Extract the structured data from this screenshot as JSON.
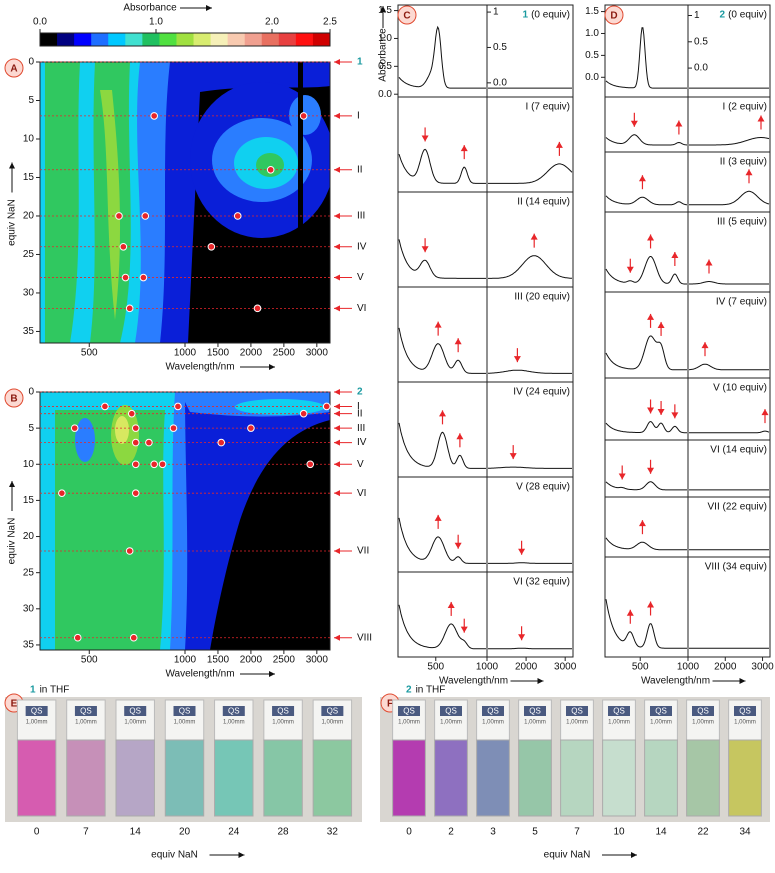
{
  "colorbar": {
    "title": "Absorbance",
    "lim": [
      0,
      2.5
    ],
    "ticks": [
      {
        "value": 0,
        "label": "0.0"
      },
      {
        "value": 1,
        "label": "1.0"
      },
      {
        "value": 2,
        "label": "2.0"
      },
      {
        "value": 2.5,
        "label": "2.5"
      }
    ]
  },
  "panel_a": {
    "letter": "A",
    "ylabel": "equiv NaN",
    "xlabel": "Wavelength/nm",
    "ylim": [
      0,
      36.5
    ],
    "yticks": [
      0,
      5,
      10,
      15,
      20,
      25,
      30,
      35
    ],
    "xlim": [
      350,
      3200
    ],
    "xbreak": 1000,
    "xticks": [
      500,
      1000,
      1500,
      2000,
      2500,
      3000
    ],
    "rows": [
      {
        "label": "1",
        "equiv": 0
      },
      {
        "label": "I",
        "equiv": 7
      },
      {
        "label": "II",
        "equiv": 14
      },
      {
        "label": "III",
        "equiv": 20
      },
      {
        "label": "IV",
        "equiv": 24
      },
      {
        "label": "V",
        "equiv": 28
      },
      {
        "label": "VI",
        "equiv": 32
      }
    ],
    "dots": [
      [
        800,
        7
      ],
      [
        2800,
        7
      ],
      [
        2300,
        14
      ],
      [
        620,
        20
      ],
      [
        750,
        20
      ],
      [
        1800,
        20
      ],
      [
        640,
        24
      ],
      [
        1400,
        24
      ],
      [
        650,
        28
      ],
      [
        740,
        28
      ],
      [
        670,
        32
      ],
      [
        2100,
        32
      ]
    ]
  },
  "panel_b": {
    "letter": "B",
    "ylabel": "equiv NaN",
    "xlabel": "Wavelength/nm",
    "ylim": [
      0,
      35.7
    ],
    "yticks": [
      0,
      5,
      10,
      15,
      20,
      25,
      30,
      35
    ],
    "xlim": [
      350,
      3200
    ],
    "xbreak": 1000,
    "xticks": [
      500,
      1000,
      1500,
      2000,
      2500,
      3000
    ],
    "rows": [
      {
        "label": "2",
        "equiv": 0
      },
      {
        "label": "I",
        "equiv": 2
      },
      {
        "label": "II",
        "equiv": 3
      },
      {
        "label": "III",
        "equiv": 5
      },
      {
        "label": "IV",
        "equiv": 7
      },
      {
        "label": "V",
        "equiv": 10
      },
      {
        "label": "VI",
        "equiv": 14
      },
      {
        "label": "VII",
        "equiv": 22
      },
      {
        "label": "VIII",
        "equiv": 34
      }
    ],
    "dots": [
      [
        560,
        2
      ],
      [
        950,
        2
      ],
      [
        3150,
        2
      ],
      [
        680,
        3
      ],
      [
        2800,
        3
      ],
      [
        450,
        5
      ],
      [
        700,
        5
      ],
      [
        920,
        5
      ],
      [
        2000,
        5
      ],
      [
        700,
        7
      ],
      [
        770,
        7
      ],
      [
        1550,
        7
      ],
      [
        700,
        10
      ],
      [
        800,
        10
      ],
      [
        850,
        10
      ],
      [
        2900,
        10
      ],
      [
        410,
        14
      ],
      [
        700,
        14
      ],
      [
        670,
        22
      ],
      [
        460,
        34
      ],
      [
        690,
        34
      ]
    ]
  },
  "panel_c": {
    "letter": "C",
    "ylabel": "Absorbance",
    "xlabel": "Wavelength/nm",
    "compound": "1",
    "first_label": "(0 equiv)",
    "ylim": [
      -0.05,
      1.6
    ],
    "yticks": [
      {
        "value": 0,
        "label": "0.0"
      },
      {
        "value": 0.5,
        "label": "0.5"
      },
      {
        "value": 1,
        "label": "1.0"
      },
      {
        "value": 1.5,
        "label": "1.5"
      }
    ],
    "inset_ylim": [
      -0.2,
      1.1
    ],
    "inset_yticks": [
      {
        "value": 0,
        "label": "0.0"
      },
      {
        "value": 0.5,
        "label": "0.5"
      },
      {
        "value": 1,
        "label": "1"
      }
    ],
    "xlim": [
      300,
      3200
    ],
    "xbreak": 1000,
    "xticks": [
      500,
      1000,
      2000,
      3000
    ],
    "rows": [
      "I (7 equiv)",
      "II (14 equiv)",
      "III (20 equiv)",
      "IV (24 equiv)",
      "V (28 equiv)",
      "VI (32 equiv)"
    ]
  },
  "panel_d": {
    "letter": "D",
    "xlabel": "Wavelength/nm",
    "compound": "2",
    "first_label": "(0 equiv)",
    "ylim": [
      -0.45,
      1.65
    ],
    "yticks": [
      {
        "value": 0,
        "label": "0.0"
      },
      {
        "value": 0.5,
        "label": "0.5"
      },
      {
        "value": 1,
        "label": "1.0"
      },
      {
        "value": 1.5,
        "label": "1.5"
      }
    ],
    "inset_ylim": [
      -0.55,
      1.2
    ],
    "inset_yticks": [
      {
        "value": 0,
        "label": "0.0"
      },
      {
        "value": 0.5,
        "label": "0.5"
      },
      {
        "value": 1,
        "label": "1"
      }
    ],
    "xlim": [
      300,
      3200
    ],
    "xbreak": 1000,
    "xticks": [
      500,
      1000,
      2000,
      3000
    ],
    "rows": [
      "I (2 equiv)",
      "II (3 equiv)",
      "III (5 equiv)",
      "IV (7 equiv)",
      "V (10 equiv)",
      "VI (14 equiv)",
      "VII (22 equiv)",
      "VIII (34 equiv)"
    ]
  },
  "panel_e": {
    "letter": "E",
    "compound": "1",
    "caption": "in THF",
    "xlabel": "equiv NaN",
    "labels": [
      "0",
      "7",
      "14",
      "20",
      "24",
      "28",
      "32"
    ]
  },
  "panel_f": {
    "letter": "F",
    "compound": "2",
    "caption": "in THF",
    "xlabel": "equiv NaN",
    "labels": [
      "0",
      "2",
      "3",
      "5",
      "7",
      "10",
      "14",
      "22",
      "34"
    ]
  },
  "cuvette": {
    "brand": "QS",
    "pathlength": "1,00mm"
  }
}
